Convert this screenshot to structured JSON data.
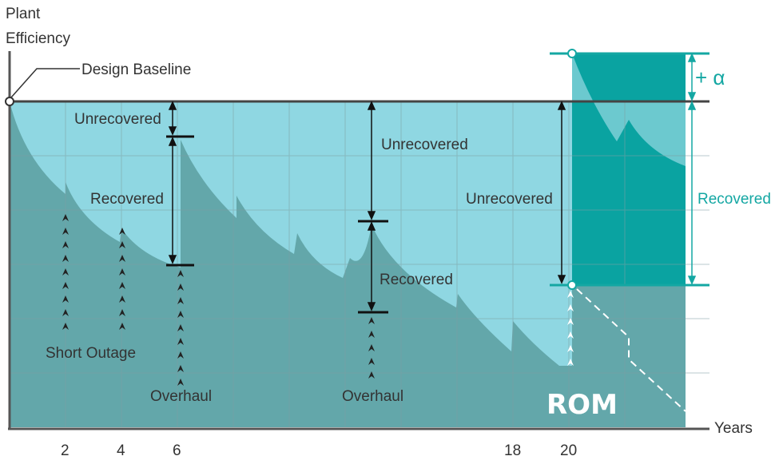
{
  "colors": {
    "dark_fill": "#63a7aa",
    "light_fill": "#8fd7e2",
    "rom_fill": "#0aa3a1",
    "rom_light": "#6cc9cf",
    "axis": "#555555",
    "grid": "#7f9fa3",
    "teal_text": "#14a7a3"
  },
  "axis_labels": {
    "y_line1": "Plant",
    "y_line2": "Efficiency",
    "x": "Years"
  },
  "annotations": {
    "design_baseline": "Design Baseline",
    "unrecovered": "Unrecovered",
    "recovered": "Recovered",
    "short_outage": "Short Outage",
    "overhaul": "Overhaul",
    "rom": "ROM",
    "plus_alpha": "+ α"
  },
  "chart_data": {
    "type": "area",
    "title": "",
    "xlabel": "Years",
    "ylabel": "Plant Efficiency",
    "x_ticks": [
      "2",
      "4",
      "6",
      "18",
      "20"
    ],
    "grid": true,
    "baseline_label": "Design Baseline",
    "events": [
      {
        "year": 2,
        "type": "Short Outage"
      },
      {
        "year": 4,
        "type": "Short Outage"
      },
      {
        "year": 6,
        "type": "Overhaul"
      },
      {
        "year": 13,
        "type": "Overhaul"
      },
      {
        "year": 20,
        "type": "ROM"
      }
    ],
    "series": [
      {
        "name": "Recovered",
        "role": "recovered efficiency"
      },
      {
        "name": "Unrecovered",
        "role": "unrecovered efficiency loss"
      }
    ]
  }
}
